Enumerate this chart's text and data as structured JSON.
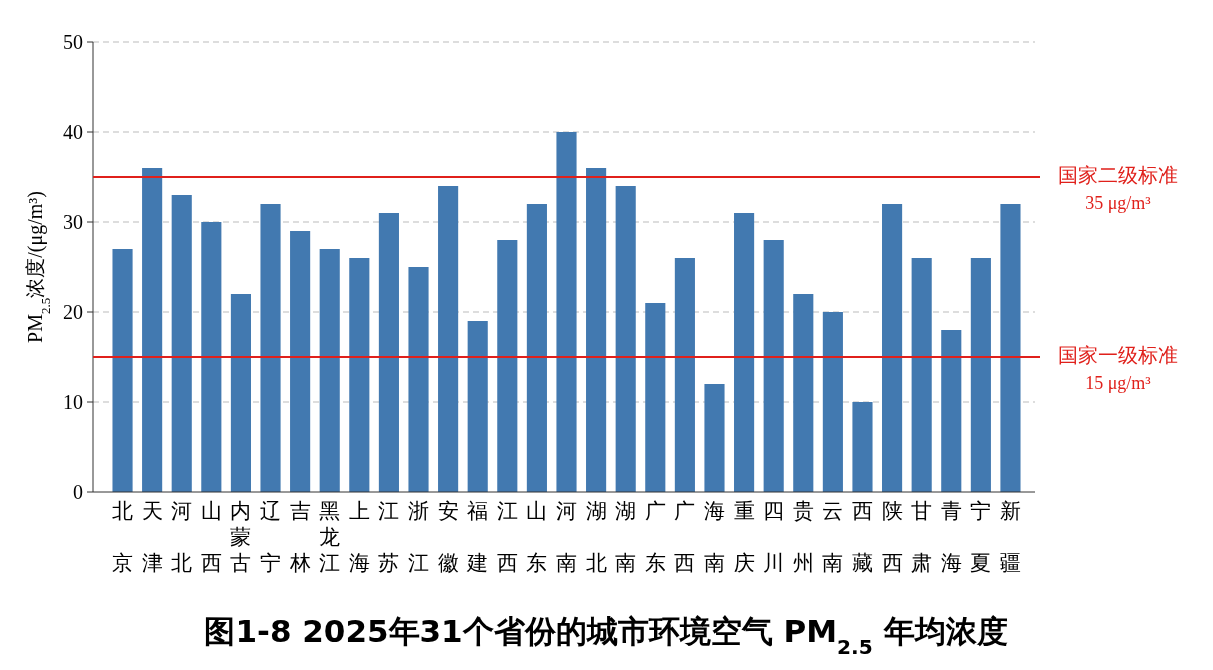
{
  "chart_data": {
    "type": "bar",
    "title": "图1-8  2025年31个省份的城市环境空气 PM$_{2.5}$ 年均浓度",
    "ylabel": "PM$_{2.5}$浓度/(μg/m³)",
    "categories": [
      "北京",
      "天津",
      "河北",
      "山西",
      "内蒙古",
      "辽宁",
      "吉林",
      "黑龙江",
      "上海",
      "江苏",
      "浙江",
      "安徽",
      "福建",
      "江西",
      "山东",
      "河南",
      "湖北",
      "湖南",
      "广东",
      "广西",
      "海南",
      "重庆",
      "四川",
      "贵州",
      "云南",
      "西藏",
      "陕西",
      "甘肃",
      "青海",
      "宁夏",
      "新疆"
    ],
    "values": [
      27,
      36,
      33,
      30,
      22,
      32,
      29,
      27,
      26,
      31,
      25,
      34,
      19,
      28,
      32,
      40,
      36,
      34,
      21,
      26,
      12,
      31,
      28,
      22,
      20,
      10,
      32,
      26,
      18,
      26,
      32
    ],
    "color": "#4279b0",
    "ylim": [
      0,
      50
    ],
    "yticks": [
      0,
      10,
      20,
      30,
      40,
      50
    ],
    "grid": "y",
    "ref_lines": [
      {
        "axis": "y",
        "value": 35,
        "label": "国家二级标准\n35 μg/m³",
        "color": "#e0201b"
      },
      {
        "axis": "y",
        "value": 15,
        "label": "国家一级标准\n15 μg/m³",
        "color": "#e0201b"
      }
    ]
  }
}
